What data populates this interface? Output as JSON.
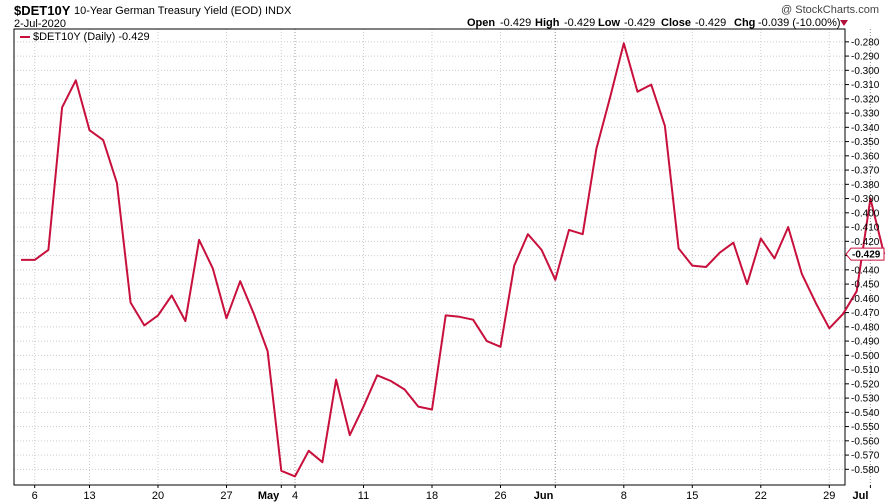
{
  "header": {
    "symbol": "$DET10Y",
    "description": "10-Year German Treasury Yield (EOD)",
    "exchange": "INDX",
    "date": "2-Jul-2020",
    "watermark": "@ StockCharts.com",
    "open_label": "Open",
    "open_value": "-0.429",
    "high_label": "High",
    "high_value": "-0.429",
    "low_label": "Low",
    "low_value": "-0.429",
    "close_label": "Close",
    "close_value": "-0.429",
    "chg_label": "Chg",
    "chg_value": "-0.039 (-10.00%)",
    "chg_color": "#b0103a"
  },
  "legend": {
    "label": "$DET10Y (Daily) -0.429"
  },
  "colors": {
    "line": "#c8103c",
    "grid": "#cccccc",
    "axis": "#000000"
  },
  "chart_data": {
    "type": "line",
    "series": [
      {
        "name": "$DET10Y (Daily)",
        "values": [
          -0.433,
          -0.433,
          -0.426,
          -0.326,
          -0.307,
          -0.342,
          -0.349,
          -0.379,
          -0.463,
          -0.479,
          -0.472,
          -0.458,
          -0.476,
          -0.419,
          -0.439,
          -0.474,
          -0.448,
          -0.471,
          -0.497,
          -0.581,
          -0.585,
          -0.567,
          -0.575,
          -0.517,
          -0.556,
          -0.536,
          -0.514,
          -0.518,
          -0.524,
          -0.536,
          -0.538,
          -0.472,
          -0.473,
          -0.475,
          -0.49,
          -0.494,
          -0.437,
          -0.415,
          -0.426,
          -0.447,
          -0.412,
          -0.415,
          -0.355,
          -0.319,
          -0.281,
          -0.315,
          -0.31,
          -0.339,
          -0.425,
          -0.437,
          -0.438,
          -0.428,
          -0.421,
          -0.45,
          -0.418,
          -0.432,
          -0.41,
          -0.443,
          -0.463,
          -0.481,
          -0.471,
          -0.455,
          -0.39,
          -0.429
        ]
      }
    ],
    "last_value_label": "-0.429",
    "y_ticks": [
      -0.28,
      -0.29,
      -0.3,
      -0.31,
      -0.32,
      -0.33,
      -0.34,
      -0.35,
      -0.36,
      -0.37,
      -0.38,
      -0.39,
      -0.4,
      -0.41,
      -0.42,
      -0.43,
      -0.44,
      -0.45,
      -0.46,
      -0.47,
      -0.48,
      -0.49,
      -0.5,
      -0.51,
      -0.52,
      -0.53,
      -0.54,
      -0.55,
      -0.56,
      -0.57,
      -0.58
    ],
    "y_tick_labels": [
      "-0.280",
      "-0.290",
      "-0.300",
      "-0.310",
      "-0.320",
      "-0.330",
      "-0.340",
      "-0.350",
      "-0.360",
      "-0.370",
      "-0.380",
      "-0.390",
      "-0.400",
      "-0.410",
      "-0.420",
      "-0.430",
      "-0.440",
      "-0.450",
      "-0.460",
      "-0.470",
      "-0.480",
      "-0.490",
      "-0.500",
      "-0.510",
      "-0.520",
      "-0.530",
      "-0.540",
      "-0.550",
      "-0.560",
      "-0.570",
      "-0.580"
    ],
    "ylim": [
      -0.591,
      -0.271
    ],
    "x_ticks": [
      {
        "label": "6",
        "index": 1,
        "bold": false
      },
      {
        "label": "13",
        "index": 5,
        "bold": false
      },
      {
        "label": "20",
        "index": 10,
        "bold": false
      },
      {
        "label": "27",
        "index": 15,
        "bold": false
      },
      {
        "label": "May",
        "index": 19,
        "bold": true
      },
      {
        "label": "4",
        "index": 20,
        "bold": false
      },
      {
        "label": "11",
        "index": 25,
        "bold": false
      },
      {
        "label": "18",
        "index": 30,
        "bold": false
      },
      {
        "label": "26",
        "index": 35,
        "bold": false
      },
      {
        "label": "Jun",
        "index": 39,
        "bold": true
      },
      {
        "label": "8",
        "index": 44,
        "bold": false
      },
      {
        "label": "15",
        "index": 49,
        "bold": false
      },
      {
        "label": "22",
        "index": 54,
        "bold": false
      },
      {
        "label": "29",
        "index": 59,
        "bold": false
      },
      {
        "label": "Jul",
        "index": 62,
        "bold": true
      }
    ],
    "month_boundaries": [
      20,
      39,
      62
    ],
    "grid": true,
    "legend_position": "top-left",
    "y_axis_position": "right"
  }
}
